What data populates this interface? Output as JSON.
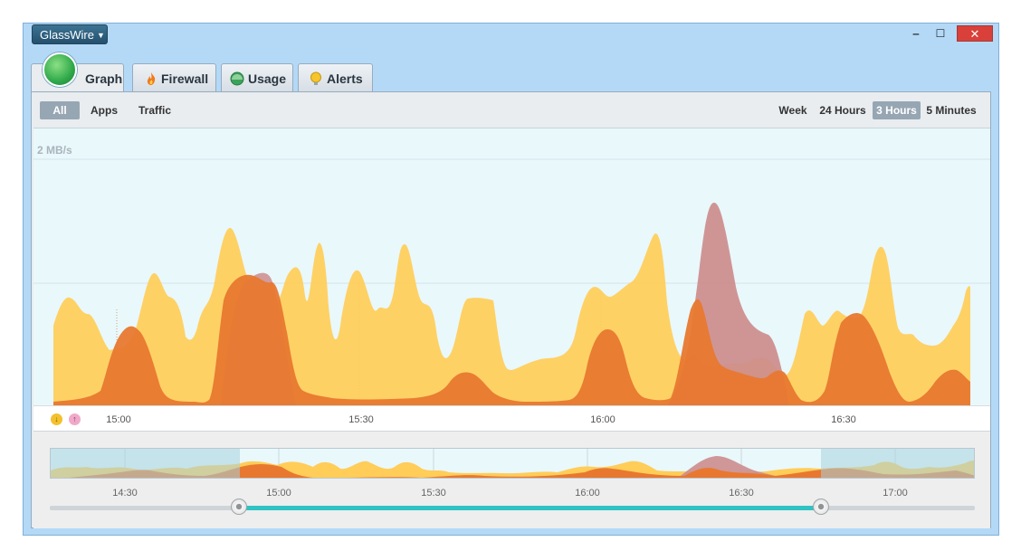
{
  "app": {
    "name": "GlassWire"
  },
  "window": {
    "minimize": "‒",
    "maximize": "☐",
    "close": "✕"
  },
  "tabs": [
    {
      "label": "Graph",
      "icon": "graph-logo-icon",
      "active": true
    },
    {
      "label": "Firewall",
      "icon": "fire-icon"
    },
    {
      "label": "Usage",
      "icon": "usage-icon"
    },
    {
      "label": "Alerts",
      "icon": "alert-bulb-icon"
    }
  ],
  "filters": {
    "all": "All",
    "apps": "Apps",
    "traffic": "Traffic",
    "selected": "All"
  },
  "ranges": {
    "week": "Week",
    "h24": "24 Hours",
    "h3": "3 Hours",
    "m5": "5 Minutes",
    "selected": "3 Hours"
  },
  "graph": {
    "scale_label": "2 MB/s",
    "times": [
      "15:00",
      "15:30",
      "16:00",
      "16:30"
    ]
  },
  "legend": {
    "download_glyph": "↓",
    "upload_glyph": "↑"
  },
  "overview": {
    "times": [
      "14:30",
      "15:00",
      "15:30",
      "16:00",
      "16:30",
      "17:00"
    ]
  },
  "colors": {
    "download": "#ffcd58",
    "upload": "#e8782f",
    "alert_peak": "#cc8c8c",
    "selection": "#2fc3c4",
    "close": "#d9403a"
  }
}
